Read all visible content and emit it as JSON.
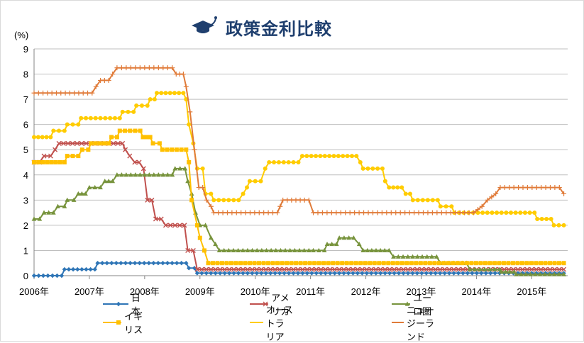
{
  "title": "政策金利比較",
  "chart_data": {
    "type": "line",
    "title": "政策金利比較",
    "ylabel": "(%)",
    "xlabel": "",
    "ylim": [
      0,
      9
    ],
    "yticks": [
      0,
      1,
      2,
      3,
      4,
      5,
      6,
      7,
      8,
      9
    ],
    "xlim": [
      2006.0,
      2015.65
    ],
    "xticks": [
      {
        "value": 2006,
        "label": "2006年"
      },
      {
        "value": 2007,
        "label": "2007年"
      },
      {
        "value": 2008,
        "label": "2008年"
      },
      {
        "value": 2009,
        "label": "2009年"
      },
      {
        "value": 2010,
        "label": "2010年"
      },
      {
        "value": 2011,
        "label": "2011年"
      },
      {
        "value": 2012,
        "label": "2012年"
      },
      {
        "value": 2013,
        "label": "2013年"
      },
      {
        "value": 2014,
        "label": "2014年"
      },
      {
        "value": 2015,
        "label": "2015年"
      }
    ],
    "grid": true,
    "legend_position": "bottom",
    "series": [
      {
        "name": "日本",
        "color": "#2e75b6",
        "marker": "diamond",
        "points": [
          [
            2006.0,
            0
          ],
          [
            2006.5,
            0
          ],
          [
            2006.55,
            0.25
          ],
          [
            2007.1,
            0.25
          ],
          [
            2007.15,
            0.5
          ],
          [
            2008.75,
            0.5
          ],
          [
            2008.8,
            0.3
          ],
          [
            2008.9,
            0.3
          ],
          [
            2008.95,
            0.1
          ],
          [
            2015.58,
            0.1
          ]
        ]
      },
      {
        "name": "アメリカ",
        "color": "#c0504d",
        "marker": "x",
        "points": [
          [
            2006.0,
            4.5
          ],
          [
            2006.1,
            4.5
          ],
          [
            2006.18,
            4.75
          ],
          [
            2006.3,
            4.75
          ],
          [
            2006.38,
            5.0
          ],
          [
            2006.45,
            5.25
          ],
          [
            2007.6,
            5.25
          ],
          [
            2007.65,
            5.0
          ],
          [
            2007.73,
            4.75
          ],
          [
            2007.82,
            4.5
          ],
          [
            2007.9,
            4.5
          ],
          [
            2007.98,
            4.25
          ],
          [
            2008.05,
            3.0
          ],
          [
            2008.13,
            3.0
          ],
          [
            2008.2,
            2.25
          ],
          [
            2008.3,
            2.25
          ],
          [
            2008.38,
            2.0
          ],
          [
            2008.72,
            2.0
          ],
          [
            2008.78,
            1.0
          ],
          [
            2008.88,
            1.0
          ],
          [
            2008.95,
            0.25
          ],
          [
            2015.58,
            0.25
          ]
        ]
      },
      {
        "name": "ユーロ圏",
        "color": "#77933c",
        "marker": "triangle",
        "points": [
          [
            2006.0,
            2.25
          ],
          [
            2006.1,
            2.25
          ],
          [
            2006.18,
            2.5
          ],
          [
            2006.35,
            2.5
          ],
          [
            2006.43,
            2.75
          ],
          [
            2006.55,
            2.75
          ],
          [
            2006.6,
            3.0
          ],
          [
            2006.72,
            3.0
          ],
          [
            2006.8,
            3.25
          ],
          [
            2006.93,
            3.25
          ],
          [
            2007.0,
            3.5
          ],
          [
            2007.2,
            3.5
          ],
          [
            2007.28,
            3.75
          ],
          [
            2007.42,
            3.75
          ],
          [
            2007.5,
            4.0
          ],
          [
            2008.5,
            4.0
          ],
          [
            2008.55,
            4.25
          ],
          [
            2008.73,
            4.25
          ],
          [
            2008.78,
            3.75
          ],
          [
            2008.85,
            3.25
          ],
          [
            2008.92,
            2.5
          ],
          [
            2009.0,
            2.0
          ],
          [
            2009.1,
            2.0
          ],
          [
            2009.2,
            1.5
          ],
          [
            2009.28,
            1.25
          ],
          [
            2009.35,
            1.0
          ],
          [
            2010.97,
            1.0
          ],
          [
            2011.05,
            1.0
          ],
          [
            2011.25,
            1.0
          ],
          [
            2011.3,
            1.25
          ],
          [
            2011.47,
            1.25
          ],
          [
            2011.52,
            1.5
          ],
          [
            2011.78,
            1.5
          ],
          [
            2011.88,
            1.25
          ],
          [
            2011.95,
            1.0
          ],
          [
            2012.42,
            1.0
          ],
          [
            2012.5,
            0.75
          ],
          [
            2013.28,
            0.75
          ],
          [
            2013.35,
            0.5
          ],
          [
            2013.82,
            0.5
          ],
          [
            2013.88,
            0.25
          ],
          [
            2014.42,
            0.25
          ],
          [
            2014.45,
            0.15
          ],
          [
            2014.68,
            0.15
          ],
          [
            2014.72,
            0.05
          ],
          [
            2015.58,
            0.05
          ]
        ]
      },
      {
        "name": "イギリス",
        "color": "#ffc000",
        "marker": "square",
        "points": [
          [
            2006.0,
            4.5
          ],
          [
            2006.55,
            4.5
          ],
          [
            2006.6,
            4.75
          ],
          [
            2006.8,
            4.75
          ],
          [
            2006.87,
            5.0
          ],
          [
            2006.98,
            5.0
          ],
          [
            2007.03,
            5.25
          ],
          [
            2007.35,
            5.25
          ],
          [
            2007.4,
            5.5
          ],
          [
            2007.5,
            5.5
          ],
          [
            2007.55,
            5.75
          ],
          [
            2007.92,
            5.75
          ],
          [
            2007.97,
            5.5
          ],
          [
            2008.1,
            5.5
          ],
          [
            2008.15,
            5.25
          ],
          [
            2008.27,
            5.25
          ],
          [
            2008.32,
            5.0
          ],
          [
            2008.75,
            5.0
          ],
          [
            2008.8,
            4.5
          ],
          [
            2008.85,
            3.0
          ],
          [
            2008.95,
            2.0
          ],
          [
            2009.0,
            1.5
          ],
          [
            2009.08,
            1.0
          ],
          [
            2009.15,
            0.5
          ],
          [
            2015.58,
            0.5
          ]
        ]
      },
      {
        "name": "オーストラリア",
        "color": "#ffcc00",
        "marker": "circle",
        "points": [
          [
            2006.0,
            5.5
          ],
          [
            2006.3,
            5.5
          ],
          [
            2006.35,
            5.75
          ],
          [
            2006.55,
            5.75
          ],
          [
            2006.6,
            6.0
          ],
          [
            2006.8,
            6.0
          ],
          [
            2006.85,
            6.25
          ],
          [
            2007.55,
            6.25
          ],
          [
            2007.6,
            6.5
          ],
          [
            2007.8,
            6.5
          ],
          [
            2007.85,
            6.75
          ],
          [
            2008.05,
            6.75
          ],
          [
            2008.1,
            7.0
          ],
          [
            2008.18,
            7.0
          ],
          [
            2008.22,
            7.25
          ],
          [
            2008.7,
            7.25
          ],
          [
            2008.75,
            7.0
          ],
          [
            2008.8,
            6.0
          ],
          [
            2008.88,
            5.25
          ],
          [
            2008.95,
            4.25
          ],
          [
            2009.05,
            4.25
          ],
          [
            2009.1,
            3.25
          ],
          [
            2009.2,
            3.25
          ],
          [
            2009.25,
            3.0
          ],
          [
            2009.7,
            3.0
          ],
          [
            2009.78,
            3.25
          ],
          [
            2009.85,
            3.5
          ],
          [
            2009.9,
            3.75
          ],
          [
            2010.1,
            3.75
          ],
          [
            2010.18,
            4.25
          ],
          [
            2010.25,
            4.5
          ],
          [
            2010.78,
            4.5
          ],
          [
            2010.85,
            4.75
          ],
          [
            2011.83,
            4.75
          ],
          [
            2011.9,
            4.5
          ],
          [
            2011.95,
            4.25
          ],
          [
            2012.3,
            4.25
          ],
          [
            2012.35,
            3.75
          ],
          [
            2012.42,
            3.5
          ],
          [
            2012.65,
            3.5
          ],
          [
            2012.72,
            3.25
          ],
          [
            2012.8,
            3.25
          ],
          [
            2012.85,
            3.0
          ],
          [
            2013.3,
            3.0
          ],
          [
            2013.35,
            2.75
          ],
          [
            2013.55,
            2.75
          ],
          [
            2013.6,
            2.5
          ],
          [
            2015.05,
            2.5
          ],
          [
            2015.1,
            2.25
          ],
          [
            2015.35,
            2.25
          ],
          [
            2015.4,
            2.0
          ],
          [
            2015.58,
            2.0
          ]
        ]
      },
      {
        "name": "ニュージーランド",
        "color": "#e07b39",
        "marker": "plus",
        "points": [
          [
            2006.0,
            7.25
          ],
          [
            2007.05,
            7.25
          ],
          [
            2007.12,
            7.5
          ],
          [
            2007.2,
            7.75
          ],
          [
            2007.35,
            7.75
          ],
          [
            2007.42,
            8.0
          ],
          [
            2007.5,
            8.25
          ],
          [
            2008.5,
            8.25
          ],
          [
            2008.57,
            8.0
          ],
          [
            2008.7,
            8.0
          ],
          [
            2008.75,
            7.5
          ],
          [
            2008.82,
            6.5
          ],
          [
            2008.9,
            5.0
          ],
          [
            2008.98,
            3.5
          ],
          [
            2009.05,
            3.5
          ],
          [
            2009.12,
            3.0
          ],
          [
            2009.2,
            2.75
          ],
          [
            2009.25,
            2.5
          ],
          [
            2010.4,
            2.5
          ],
          [
            2010.45,
            2.75
          ],
          [
            2010.5,
            3.0
          ],
          [
            2010.97,
            3.0
          ],
          [
            2011.05,
            2.5
          ],
          [
            2013.95,
            2.5
          ],
          [
            2014.1,
            2.75
          ],
          [
            2014.2,
            3.0
          ],
          [
            2014.35,
            3.25
          ],
          [
            2014.43,
            3.5
          ],
          [
            2015.5,
            3.5
          ],
          [
            2015.58,
            3.25
          ]
        ]
      }
    ]
  }
}
